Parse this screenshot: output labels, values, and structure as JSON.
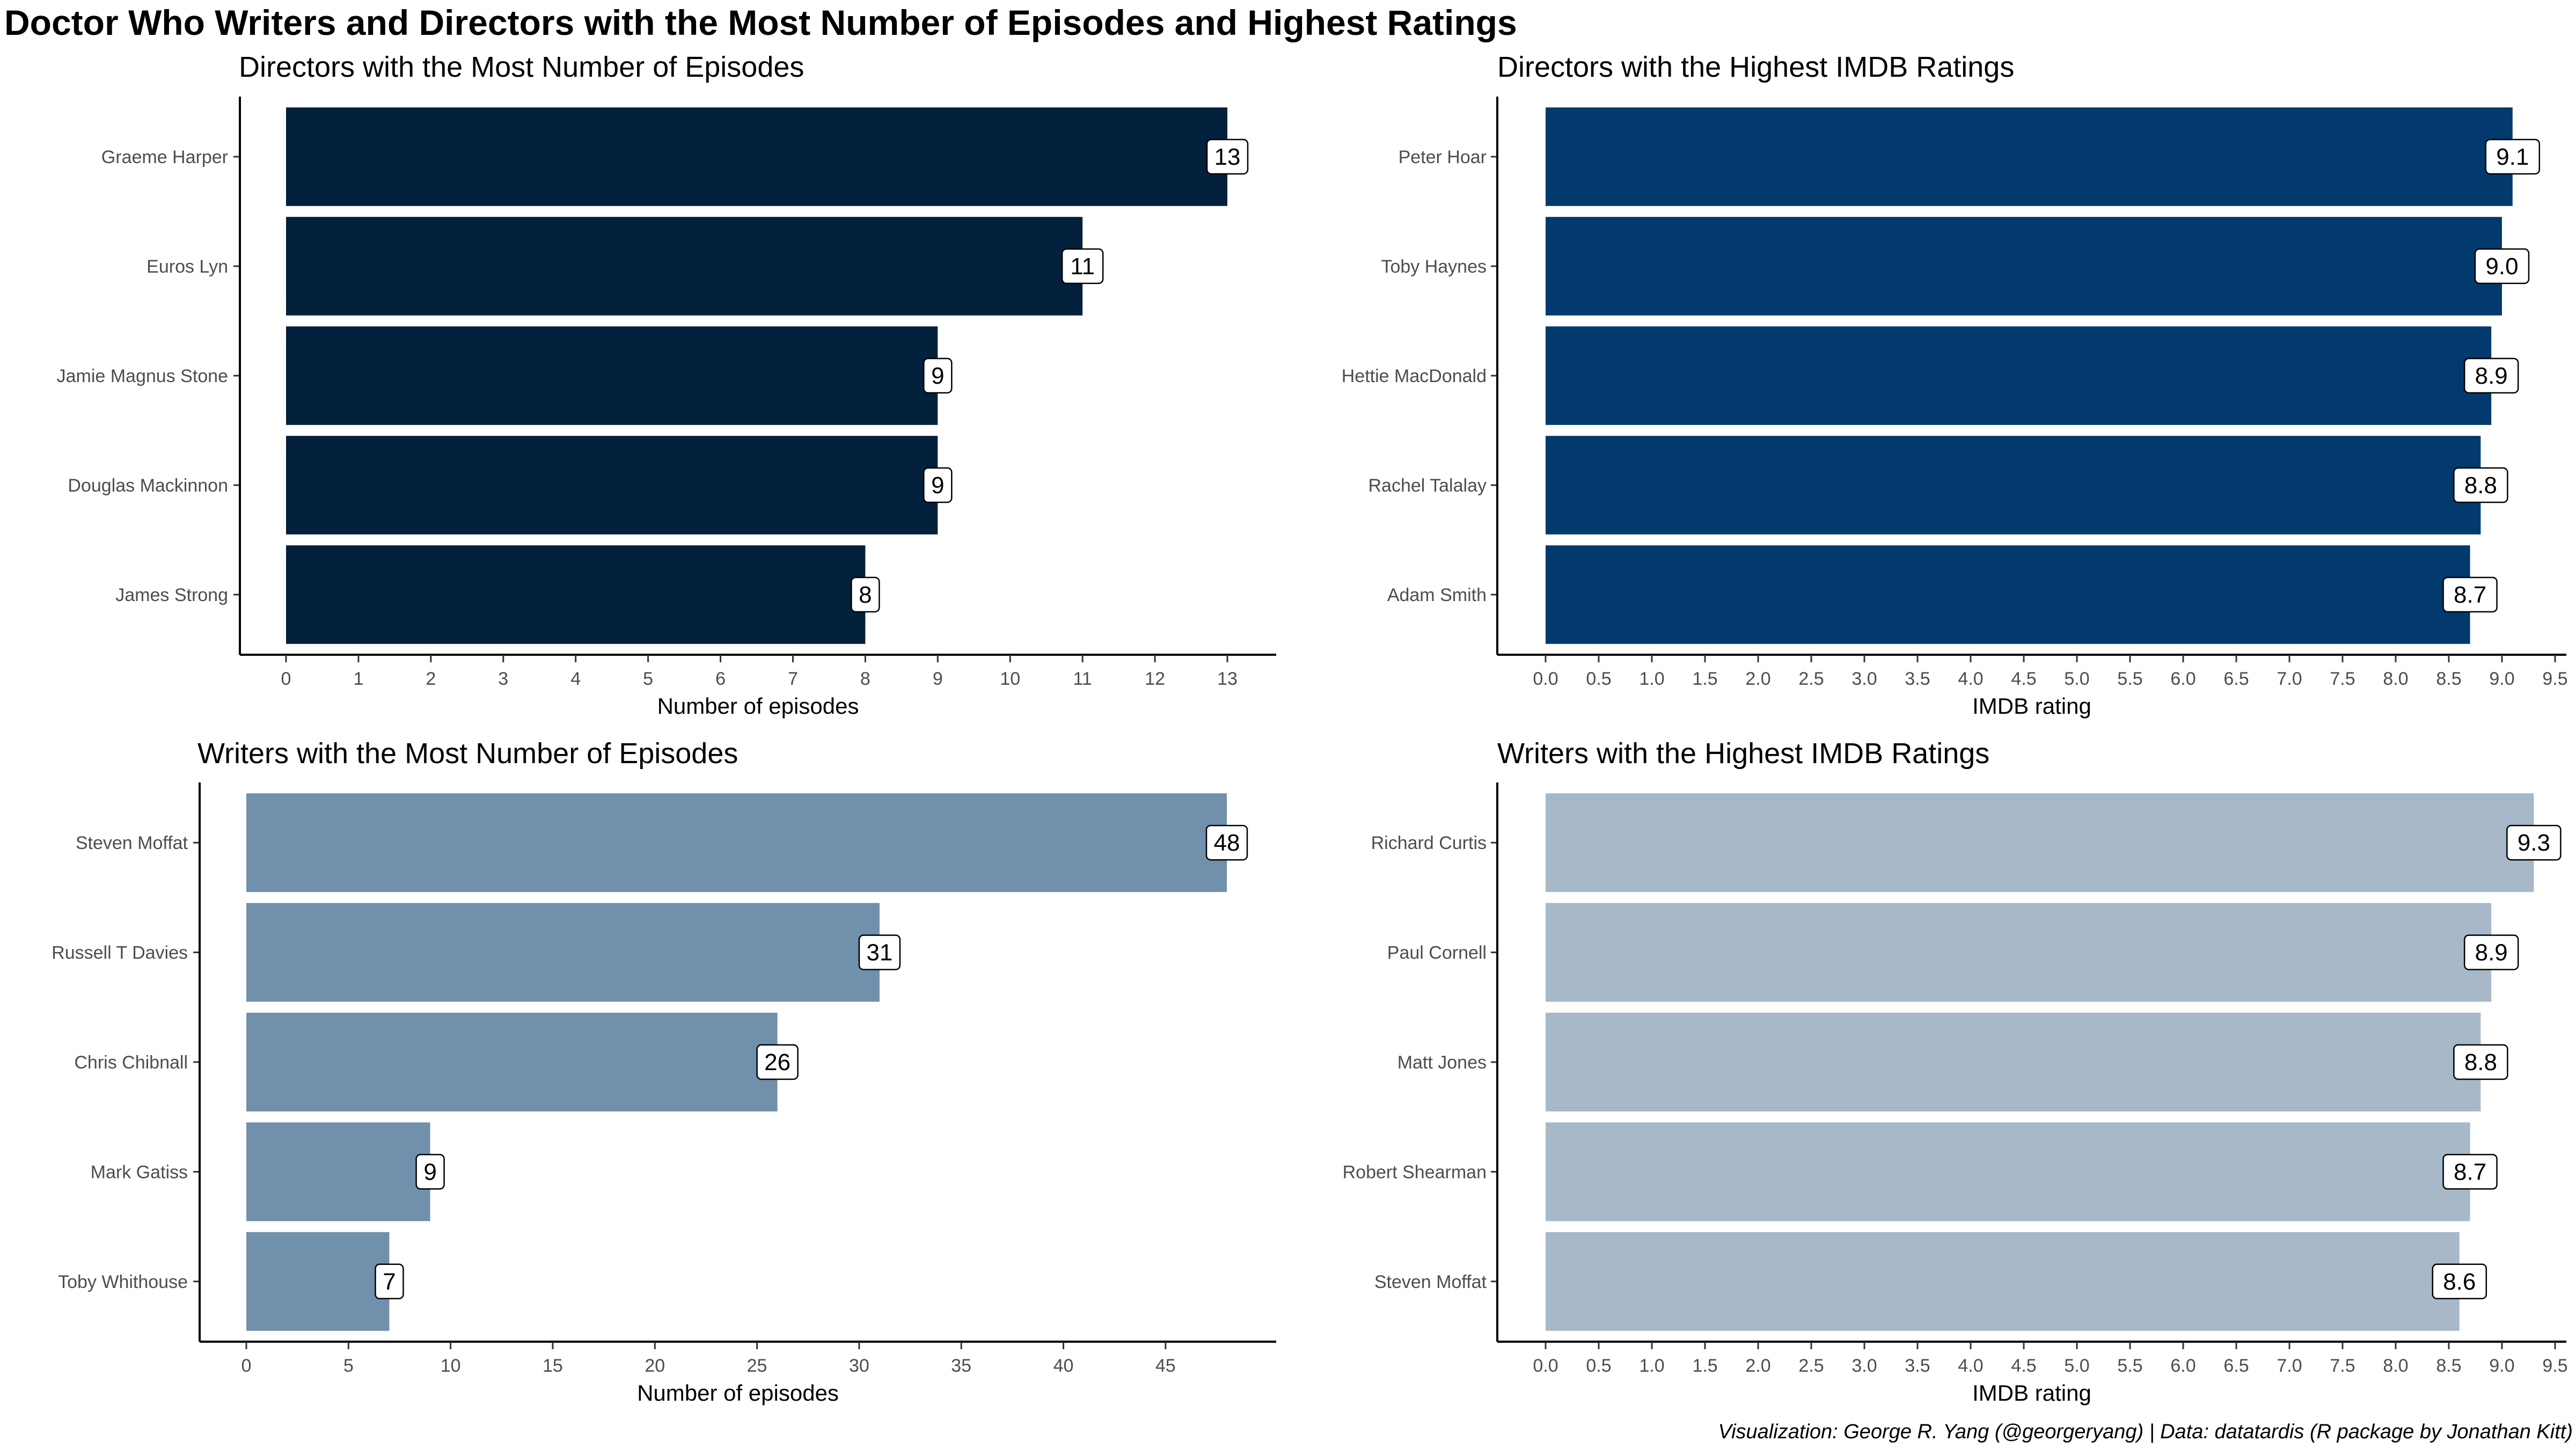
{
  "title": "Doctor Who Writers and Directors with the Most Number of Episodes and Highest Ratings",
  "caption": "Visualization: George R. Yang (@georgeryang) | Data: datatardis (R package by Jonathan Kitt)",
  "chart_data": [
    {
      "type": "bar",
      "orientation": "horizontal",
      "title": "Directors with the Most Number of Episodes",
      "xlabel": "Number of episodes",
      "ylabel": "",
      "categories": [
        "Graeme Harper",
        "Euros Lyn",
        "Jamie Magnus Stone",
        "Douglas Mackinnon",
        "James Strong"
      ],
      "values": [
        13,
        11,
        9,
        9,
        8
      ],
      "value_labels": [
        "13",
        "11",
        "9",
        "9",
        "8"
      ],
      "xlim": [
        0,
        13
      ],
      "ticks": [
        0,
        1,
        2,
        3,
        4,
        5,
        6,
        7,
        8,
        9,
        10,
        11,
        12,
        13
      ],
      "tick_labels": [
        "0",
        "1",
        "2",
        "3",
        "4",
        "5",
        "6",
        "7",
        "8",
        "9",
        "10",
        "11",
        "12",
        "13"
      ],
      "color": "#03203c",
      "grid": false
    },
    {
      "type": "bar",
      "orientation": "horizontal",
      "title": "Directors with the Highest IMDB Ratings",
      "xlabel": "IMDB rating",
      "ylabel": "",
      "categories": [
        "Peter Hoar",
        "Toby Haynes",
        "Hettie MacDonald",
        "Rachel Talalay",
        "Adam Smith"
      ],
      "values": [
        9.1,
        9.0,
        8.9,
        8.8,
        8.7
      ],
      "value_labels": [
        "9.1",
        "9.0",
        "8.9",
        "8.8",
        "8.7"
      ],
      "xlim": [
        0,
        9.5
      ],
      "ticks": [
        0,
        0.5,
        1,
        1.5,
        2,
        2.5,
        3,
        3.5,
        4,
        4.5,
        5,
        5.5,
        6,
        6.5,
        7,
        7.5,
        8,
        8.5,
        9,
        9.5
      ],
      "tick_labels": [
        "0.0",
        "0.5",
        "1.0",
        "1.5",
        "2.0",
        "2.5",
        "3.0",
        "3.5",
        "4.0",
        "4.5",
        "5.0",
        "5.5",
        "6.0",
        "6.5",
        "7.0",
        "7.5",
        "8.0",
        "8.5",
        "9.0",
        "9.5"
      ],
      "color": "#023a6d",
      "grid": false
    },
    {
      "type": "bar",
      "orientation": "horizontal",
      "title": "Writers with the Most Number of Episodes",
      "xlabel": "Number of episodes",
      "ylabel": "",
      "categories": [
        "Steven Moffat",
        "Russell T Davies",
        "Chris Chibnall",
        "Mark Gatiss",
        "Toby Whithouse"
      ],
      "values": [
        48,
        31,
        26,
        9,
        7
      ],
      "value_labels": [
        "48",
        "31",
        "26",
        "9",
        "7"
      ],
      "xlim": [
        0,
        48
      ],
      "ticks": [
        0,
        5,
        10,
        15,
        20,
        25,
        30,
        35,
        40,
        45
      ],
      "tick_labels": [
        "0",
        "5",
        "10",
        "15",
        "20",
        "25",
        "30",
        "35",
        "40",
        "45"
      ],
      "color": "#7090ab",
      "grid": false
    },
    {
      "type": "bar",
      "orientation": "horizontal",
      "title": "Writers with the Highest IMDB Ratings",
      "xlabel": "IMDB rating",
      "ylabel": "",
      "categories": [
        "Richard Curtis",
        "Paul Cornell",
        "Matt Jones",
        "Robert Shearman",
        "Steven Moffat"
      ],
      "values": [
        9.3,
        8.9,
        8.8,
        8.7,
        8.6
      ],
      "value_labels": [
        "9.3",
        "8.9",
        "8.8",
        "8.7",
        "8.6"
      ],
      "xlim": [
        0,
        9.5
      ],
      "ticks": [
        0,
        0.5,
        1,
        1.5,
        2,
        2.5,
        3,
        3.5,
        4,
        4.5,
        5,
        5.5,
        6,
        6.5,
        7,
        7.5,
        8,
        8.5,
        9,
        9.5
      ],
      "tick_labels": [
        "0.0",
        "0.5",
        "1.0",
        "1.5",
        "2.0",
        "2.5",
        "3.0",
        "3.5",
        "4.0",
        "4.5",
        "5.0",
        "5.5",
        "6.0",
        "6.5",
        "7.0",
        "7.5",
        "8.0",
        "8.5",
        "9.0",
        "9.5"
      ],
      "color": "#a7b8c8",
      "grid": false
    }
  ]
}
